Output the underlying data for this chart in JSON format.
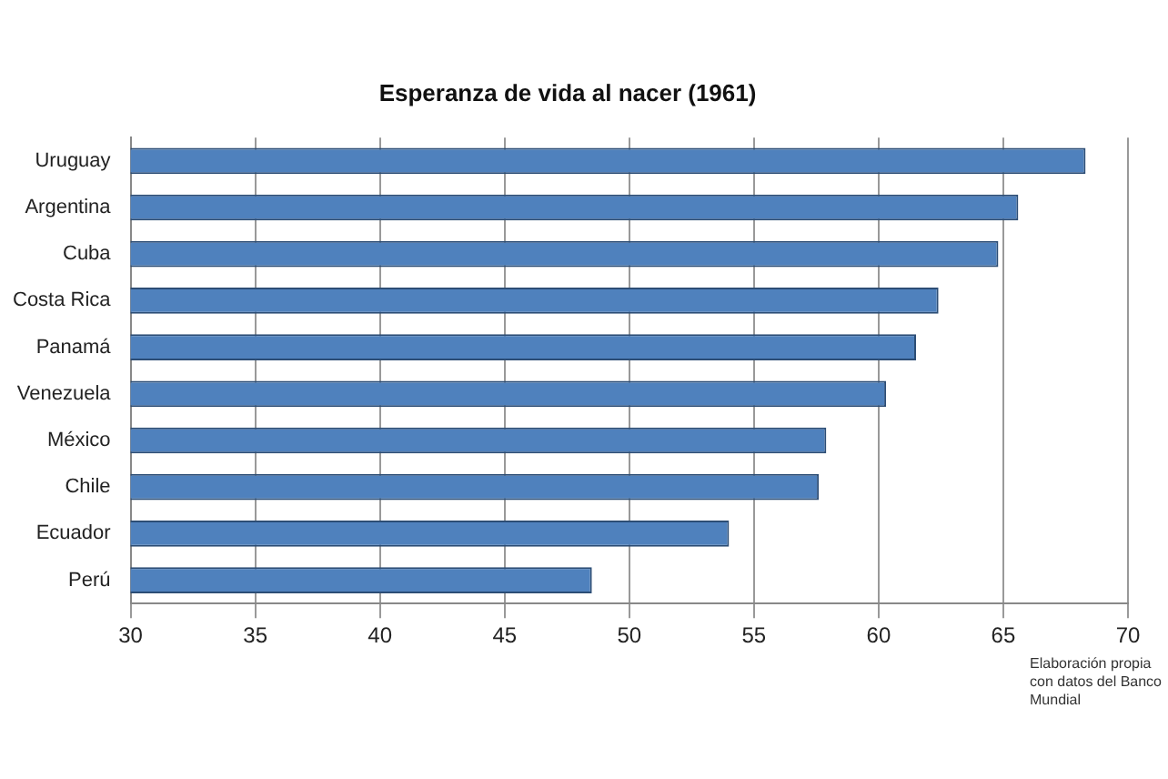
{
  "chart_data": {
    "type": "bar",
    "orientation": "horizontal",
    "title": "Esperanza de vida al nacer (1961)",
    "categories": [
      "Uruguay",
      "Argentina",
      "Cuba",
      "Costa Rica",
      "Panamá",
      "Venezuela",
      "México",
      "Chile",
      "Ecuador",
      "Perú"
    ],
    "values": [
      68.3,
      65.6,
      64.8,
      62.4,
      61.5,
      60.3,
      57.9,
      57.6,
      54.0,
      48.5
    ],
    "color": "#4f81bd",
    "xlim": [
      30,
      70
    ],
    "xticks": [
      30,
      35,
      40,
      45,
      50,
      55,
      60,
      65,
      70
    ],
    "grid": "x",
    "annotations": [
      "Elaboración propia con datos del Banco Mundial"
    ]
  }
}
